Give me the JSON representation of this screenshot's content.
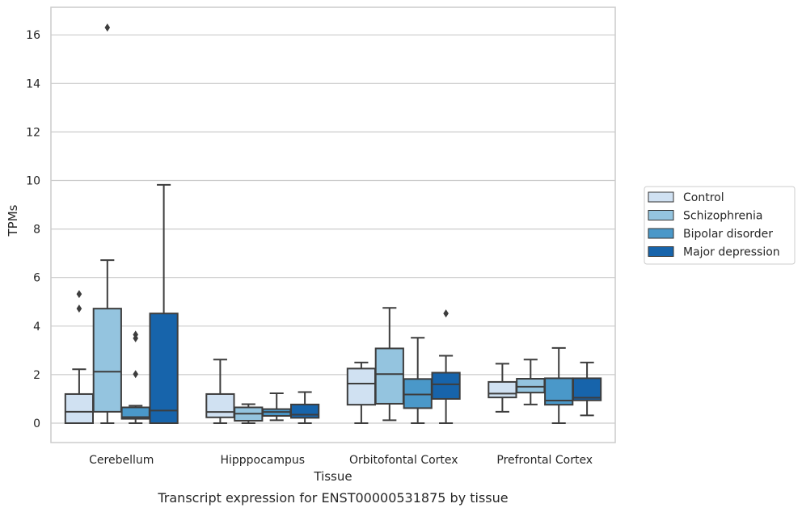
{
  "chart_data": {
    "type": "boxplot",
    "title": "Transcript expression for ENST00000531875 by tissue",
    "xlabel": "Tissue",
    "ylabel": "TPMs",
    "ylim": [
      -0.8,
      17.2
    ],
    "yticks": [
      0,
      2,
      4,
      6,
      8,
      10,
      12,
      14,
      16
    ],
    "grid": true,
    "legend_position": "right",
    "categories": [
      "Cerebellum",
      "Hipppocampus",
      "Orbitofontal Cortex",
      "Prefrontal Cortex"
    ],
    "series": [
      {
        "name": "Control",
        "color": "#d0e1f2",
        "boxes": [
          {
            "whislo": 0.0,
            "q1": 0.0,
            "med": 0.47,
            "q3": 1.2,
            "whishi": 2.22,
            "fliers": [
              4.72,
              5.32
            ]
          },
          {
            "whislo": 0.0,
            "q1": 0.24,
            "med": 0.46,
            "q3": 1.2,
            "whishi": 2.62,
            "fliers": []
          },
          {
            "whislo": 0.0,
            "q1": 0.76,
            "med": 1.63,
            "q3": 2.25,
            "whishi": 2.5,
            "fliers": []
          },
          {
            "whislo": 0.47,
            "q1": 1.06,
            "med": 1.22,
            "q3": 1.7,
            "whishi": 2.45,
            "fliers": []
          }
        ]
      },
      {
        "name": "Schizophrenia",
        "color": "#94c4df",
        "boxes": [
          {
            "whislo": 0.0,
            "q1": 0.47,
            "med": 2.12,
            "q3": 4.72,
            "whishi": 6.72,
            "fliers": [
              16.3
            ]
          },
          {
            "whislo": 0.0,
            "q1": 0.1,
            "med": 0.39,
            "q3": 0.65,
            "whishi": 0.78,
            "fliers": []
          },
          {
            "whislo": 0.12,
            "q1": 0.8,
            "med": 2.02,
            "q3": 3.08,
            "whishi": 4.75,
            "fliers": []
          },
          {
            "whislo": 0.77,
            "q1": 1.26,
            "med": 1.5,
            "q3": 1.83,
            "whishi": 2.62,
            "fliers": []
          }
        ]
      },
      {
        "name": "Bipolar disorder",
        "color": "#4a98c9",
        "boxes": [
          {
            "whislo": 0.0,
            "q1": 0.18,
            "med": 0.25,
            "q3": 0.65,
            "whishi": 0.72,
            "fliers": [
              2.02,
              3.5,
              3.65
            ]
          },
          {
            "whislo": 0.12,
            "q1": 0.3,
            "med": 0.46,
            "q3": 0.58,
            "whishi": 1.23,
            "fliers": []
          },
          {
            "whislo": 0.0,
            "q1": 0.62,
            "med": 1.18,
            "q3": 1.82,
            "whishi": 3.52,
            "fliers": []
          },
          {
            "whislo": 0.0,
            "q1": 0.76,
            "med": 0.93,
            "q3": 1.85,
            "whishi": 3.1,
            "fliers": []
          }
        ]
      },
      {
        "name": "Major depression",
        "color": "#1764ab",
        "boxes": [
          {
            "whislo": 0.0,
            "q1": 0.0,
            "med": 0.52,
            "q3": 4.52,
            "whishi": 9.82,
            "fliers": []
          },
          {
            "whislo": 0.0,
            "q1": 0.22,
            "med": 0.35,
            "q3": 0.77,
            "whishi": 1.28,
            "fliers": []
          },
          {
            "whislo": 0.0,
            "q1": 1.0,
            "med": 1.6,
            "q3": 2.08,
            "whishi": 2.78,
            "fliers": [
              4.52
            ]
          },
          {
            "whislo": 0.32,
            "q1": 0.94,
            "med": 1.05,
            "q3": 1.85,
            "whishi": 2.5,
            "fliers": []
          }
        ]
      }
    ]
  }
}
